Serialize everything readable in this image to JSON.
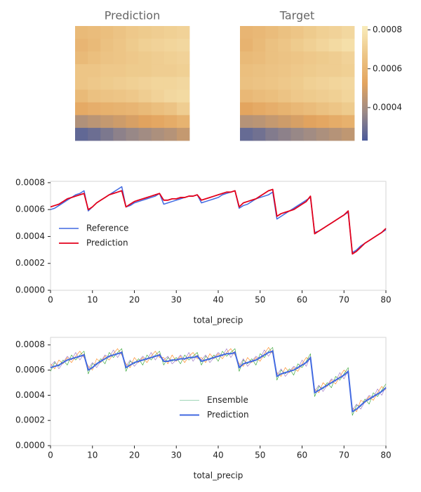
{
  "chart_data": [
    {
      "type": "heatmap",
      "title": "Prediction",
      "clim": [
        0.00023,
        0.00082
      ],
      "colormap": [
        "#4b5b9b",
        "#9c8a86",
        "#e3a45e",
        "#edc687",
        "#f9ecbb"
      ],
      "values": [
        [
          0.00062,
          0.00063,
          0.00064,
          0.00066,
          0.00068,
          0.00069,
          0.0007,
          0.00071,
          0.00072
        ],
        [
          0.0006,
          0.00062,
          0.00065,
          0.00067,
          0.00069,
          0.00071,
          0.00072,
          0.00073,
          0.00074
        ],
        [
          0.00062,
          0.00064,
          0.00066,
          0.00067,
          0.00068,
          0.00069,
          0.0007,
          0.00071,
          0.00072
        ],
        [
          0.00067,
          0.00067,
          0.00068,
          0.00068,
          0.00069,
          0.00069,
          0.0007,
          0.0007,
          0.00071
        ],
        [
          0.00067,
          0.00068,
          0.00069,
          0.0007,
          0.00071,
          0.00072,
          0.00073,
          0.00073,
          0.00074
        ],
        [
          0.00062,
          0.00065,
          0.00066,
          0.00067,
          0.00068,
          0.0007,
          0.00072,
          0.00074,
          0.00075
        ],
        [
          0.00055,
          0.00057,
          0.00058,
          0.00059,
          0.0006,
          0.00062,
          0.00064,
          0.00066,
          0.0007
        ],
        [
          0.00042,
          0.00044,
          0.00046,
          0.00048,
          0.0005,
          0.00052,
          0.00054,
          0.00056,
          0.00059
        ],
        [
          0.00027,
          0.00029,
          0.00032,
          0.00035,
          0.00037,
          0.00039,
          0.00041,
          0.00043,
          0.00046
        ]
      ]
    },
    {
      "type": "heatmap",
      "title": "Target",
      "clim": [
        0.00023,
        0.00082
      ],
      "colormap": [
        "#4b5b9b",
        "#9c8a86",
        "#e3a45e",
        "#edc687",
        "#f9ecbb"
      ],
      "colorbar_ticks": [
        0.0004,
        0.0006,
        0.0008
      ],
      "values": [
        [
          0.0006,
          0.00061,
          0.00063,
          0.00065,
          0.00067,
          0.00069,
          0.00071,
          0.00072,
          0.00074
        ],
        [
          0.00059,
          0.00062,
          0.00065,
          0.00067,
          0.00069,
          0.00071,
          0.00073,
          0.00075,
          0.00077
        ],
        [
          0.00062,
          0.00063,
          0.00065,
          0.00066,
          0.00067,
          0.00068,
          0.00069,
          0.0007,
          0.00072
        ],
        [
          0.00064,
          0.00065,
          0.00066,
          0.00067,
          0.00068,
          0.00069,
          0.0007,
          0.0007,
          0.00071
        ],
        [
          0.00065,
          0.00066,
          0.00067,
          0.00068,
          0.00069,
          0.00071,
          0.00072,
          0.00073,
          0.00074
        ],
        [
          0.00061,
          0.00063,
          0.00064,
          0.00066,
          0.00068,
          0.00069,
          0.0007,
          0.00071,
          0.00073
        ],
        [
          0.00053,
          0.00055,
          0.00057,
          0.00059,
          0.00061,
          0.00063,
          0.00065,
          0.00067,
          0.00069
        ],
        [
          0.00043,
          0.00044,
          0.00046,
          0.00048,
          0.0005,
          0.00052,
          0.00054,
          0.00056,
          0.00058
        ],
        [
          0.00028,
          0.0003,
          0.00033,
          0.00035,
          0.00037,
          0.00039,
          0.00041,
          0.00043,
          0.00045
        ]
      ]
    },
    {
      "type": "line",
      "x_label": "total_precip",
      "legend": "center left",
      "xlim": [
        0,
        80
      ],
      "xticks": [
        0,
        10,
        20,
        30,
        40,
        50,
        60,
        70,
        80
      ],
      "ylim": [
        0,
        0.00081
      ],
      "yticks": [
        {
          "value": 0,
          "label": "0.0000"
        },
        0.0002,
        0.0004,
        0.0006,
        0.0008
      ],
      "x": [
        0,
        1,
        2,
        3,
        4,
        5,
        6,
        7,
        8,
        9,
        10,
        11,
        12,
        13,
        14,
        15,
        16,
        17,
        18,
        19,
        20,
        21,
        22,
        23,
        24,
        25,
        26,
        27,
        28,
        29,
        30,
        31,
        32,
        33,
        34,
        35,
        36,
        37,
        38,
        39,
        40,
        41,
        42,
        43,
        44,
        45,
        46,
        47,
        48,
        49,
        50,
        51,
        52,
        53,
        54,
        55,
        56,
        57,
        58,
        59,
        60,
        61,
        62,
        63,
        64,
        65,
        66,
        67,
        68,
        69,
        70,
        71,
        72,
        73,
        74,
        75,
        76,
        77,
        78,
        79,
        80
      ],
      "series": [
        {
          "name": "Reference",
          "color": "#4169e1",
          "width": 1.5,
          "values": [
            0.0006,
            0.00061,
            0.00063,
            0.00065,
            0.00067,
            0.00069,
            0.00071,
            0.00072,
            0.00074,
            0.00059,
            0.00062,
            0.00065,
            0.00067,
            0.00069,
            0.00071,
            0.00073,
            0.00075,
            0.00077,
            0.00062,
            0.00063,
            0.00065,
            0.00066,
            0.00067,
            0.00068,
            0.00069,
            0.0007,
            0.00072,
            0.00064,
            0.00065,
            0.00066,
            0.00067,
            0.00068,
            0.00069,
            0.0007,
            0.0007,
            0.00071,
            0.00065,
            0.00066,
            0.00067,
            0.00068,
            0.00069,
            0.00071,
            0.00072,
            0.00073,
            0.00074,
            0.00061,
            0.00063,
            0.00064,
            0.00066,
            0.00068,
            0.00069,
            0.0007,
            0.00071,
            0.00073,
            0.00053,
            0.00055,
            0.00057,
            0.00059,
            0.00061,
            0.00063,
            0.00065,
            0.00067,
            0.00069,
            0.00043,
            0.00044,
            0.00046,
            0.00048,
            0.0005,
            0.00052,
            0.00054,
            0.00056,
            0.00058,
            0.00028,
            0.0003,
            0.00033,
            0.00035,
            0.00037,
            0.00039,
            0.00041,
            0.00043,
            0.00045
          ]
        },
        {
          "name": "Prediction",
          "color": "#e3001b",
          "width": 1.8,
          "values": [
            0.00062,
            0.00063,
            0.00064,
            0.00066,
            0.00068,
            0.00069,
            0.0007,
            0.00071,
            0.00072,
            0.0006,
            0.00062,
            0.00065,
            0.00067,
            0.00069,
            0.00071,
            0.00072,
            0.00073,
            0.00074,
            0.00062,
            0.00064,
            0.00066,
            0.00067,
            0.00068,
            0.00069,
            0.0007,
            0.00071,
            0.00072,
            0.00067,
            0.00067,
            0.00068,
            0.00068,
            0.00069,
            0.00069,
            0.0007,
            0.0007,
            0.00071,
            0.00067,
            0.00068,
            0.00069,
            0.0007,
            0.00071,
            0.00072,
            0.00073,
            0.00073,
            0.00074,
            0.00062,
            0.00065,
            0.00066,
            0.00067,
            0.00068,
            0.0007,
            0.00072,
            0.00074,
            0.00075,
            0.00055,
            0.00057,
            0.00058,
            0.00059,
            0.0006,
            0.00062,
            0.00064,
            0.00066,
            0.0007,
            0.00042,
            0.00044,
            0.00046,
            0.00048,
            0.0005,
            0.00052,
            0.00054,
            0.00056,
            0.00059,
            0.00027,
            0.00029,
            0.00032,
            0.00035,
            0.00037,
            0.00039,
            0.00041,
            0.00043,
            0.00046
          ]
        }
      ]
    },
    {
      "type": "line",
      "x_label": "total_precip",
      "legend": "center",
      "xlim": [
        0,
        80
      ],
      "xticks": [
        0,
        10,
        20,
        30,
        40,
        50,
        60,
        70,
        80
      ],
      "ylim": [
        0,
        0.00086
      ],
      "yticks": [
        {
          "value": 0,
          "label": "0.0000"
        },
        0.0002,
        0.0004,
        0.0006,
        0.0008
      ],
      "x": [
        0,
        1,
        2,
        3,
        4,
        5,
        6,
        7,
        8,
        9,
        10,
        11,
        12,
        13,
        14,
        15,
        16,
        17,
        18,
        19,
        20,
        21,
        22,
        23,
        24,
        25,
        26,
        27,
        28,
        29,
        30,
        31,
        32,
        33,
        34,
        35,
        36,
        37,
        38,
        39,
        40,
        41,
        42,
        43,
        44,
        45,
        46,
        47,
        48,
        49,
        50,
        51,
        52,
        53,
        54,
        55,
        56,
        57,
        58,
        59,
        60,
        61,
        62,
        63,
        64,
        65,
        66,
        67,
        68,
        69,
        70,
        71,
        72,
        73,
        74,
        75,
        76,
        77,
        78,
        79,
        80
      ],
      "series": [
        {
          "name": "Ensemble",
          "color": "#7fc9a0",
          "width": 0.6,
          "members": [
            {
              "color": "#ff7f0e",
              "values": [
                0.00065,
                0.00061,
                0.00068,
                0.00065,
                0.0007,
                0.00066,
                0.00071,
                0.00075,
                0.0007,
                0.00063,
                0.0006,
                0.00069,
                0.00066,
                0.00071,
                0.00068,
                0.00073,
                0.00077,
                0.00072,
                0.00065,
                0.00062,
                0.0007,
                0.00066,
                0.0007,
                0.00066,
                0.00071,
                0.00075,
                0.0007,
                0.0007,
                0.00065,
                0.00072,
                0.00067,
                0.00071,
                0.00066,
                0.00071,
                0.00074,
                0.00069,
                0.0007,
                0.00066,
                0.00073,
                0.00069,
                0.00073,
                0.00069,
                0.00074,
                0.00077,
                0.00072,
                0.00065,
                0.00063,
                0.0007,
                0.00066,
                0.0007,
                0.00067,
                0.00073,
                0.00078,
                0.00073,
                0.00058,
                0.00055,
                0.00062,
                0.00058,
                0.00062,
                0.00059,
                0.00065,
                0.0007,
                0.00068,
                0.00045,
                0.00042,
                0.0005,
                0.00047,
                0.00052,
                0.00049,
                0.00055,
                0.0006,
                0.00057,
                0.0003,
                0.00027,
                0.00036,
                0.00034,
                0.00039,
                0.00036,
                0.00042,
                0.00047,
                0.00044
              ]
            },
            {
              "color": "#2ca02c",
              "values": [
                0.00059,
                0.00066,
                0.00063,
                0.00068,
                0.00064,
                0.00072,
                0.00068,
                0.00072,
                0.00075,
                0.00057,
                0.00065,
                0.00064,
                0.00069,
                0.00065,
                0.00074,
                0.0007,
                0.00074,
                0.00077,
                0.00059,
                0.00067,
                0.00065,
                0.00069,
                0.00064,
                0.00072,
                0.00068,
                0.00072,
                0.00075,
                0.00064,
                0.0007,
                0.00067,
                0.0007,
                0.00065,
                0.00072,
                0.00068,
                0.00071,
                0.00074,
                0.00064,
                0.00071,
                0.00068,
                0.00072,
                0.00067,
                0.00075,
                0.00071,
                0.00074,
                0.00077,
                0.00059,
                0.00068,
                0.00065,
                0.00069,
                0.00064,
                0.00073,
                0.0007,
                0.00075,
                0.00078,
                0.00052,
                0.0006,
                0.00057,
                0.00061,
                0.00056,
                0.00065,
                0.00062,
                0.00067,
                0.00073,
                0.00039,
                0.00047,
                0.00045,
                0.0005,
                0.00046,
                0.00055,
                0.00052,
                0.00057,
                0.00062,
                0.00024,
                0.00032,
                0.00031,
                0.00037,
                0.00033,
                0.00042,
                0.00039,
                0.00044,
                0.00049
              ]
            },
            {
              "color": "#9467bd",
              "values": [
                0.00063,
                0.00067,
                0.00061,
                0.00066,
                0.00071,
                0.00068,
                0.00074,
                0.00068,
                0.00073,
                0.00061,
                0.00066,
                0.00062,
                0.00067,
                0.00072,
                0.0007,
                0.00076,
                0.0007,
                0.00075,
                0.00063,
                0.00068,
                0.00063,
                0.00067,
                0.00071,
                0.00068,
                0.00074,
                0.00068,
                0.00073,
                0.00068,
                0.00071,
                0.00065,
                0.00068,
                0.00072,
                0.00068,
                0.00074,
                0.00067,
                0.00072,
                0.00068,
                0.00072,
                0.00066,
                0.0007,
                0.00074,
                0.00071,
                0.00077,
                0.0007,
                0.00075,
                0.00063,
                0.00069,
                0.00063,
                0.00067,
                0.00071,
                0.00069,
                0.00076,
                0.00071,
                0.00076,
                0.00056,
                0.00061,
                0.00055,
                0.00059,
                0.00063,
                0.00061,
                0.00068,
                0.00063,
                0.00071,
                0.00043,
                0.00048,
                0.00043,
                0.00048,
                0.00053,
                0.00051,
                0.00058,
                0.00053,
                0.0006,
                0.00028,
                0.00033,
                0.00029,
                0.00035,
                0.0004,
                0.00038,
                0.00045,
                0.0004,
                0.00047
              ]
            }
          ]
        },
        {
          "name": "Prediction",
          "color": "#4169e1",
          "width": 2,
          "values": [
            0.00062,
            0.00063,
            0.00064,
            0.00066,
            0.00068,
            0.00069,
            0.0007,
            0.00071,
            0.00072,
            0.0006,
            0.00062,
            0.00065,
            0.00067,
            0.00069,
            0.00071,
            0.00072,
            0.00073,
            0.00074,
            0.00062,
            0.00064,
            0.00066,
            0.00067,
            0.00068,
            0.00069,
            0.0007,
            0.00071,
            0.00072,
            0.00067,
            0.00067,
            0.00068,
            0.00068,
            0.00069,
            0.00069,
            0.0007,
            0.0007,
            0.00071,
            0.00067,
            0.00068,
            0.00069,
            0.0007,
            0.00071,
            0.00072,
            0.00073,
            0.00073,
            0.00074,
            0.00062,
            0.00065,
            0.00066,
            0.00067,
            0.00068,
            0.0007,
            0.00072,
            0.00074,
            0.00075,
            0.00055,
            0.00057,
            0.00058,
            0.00059,
            0.0006,
            0.00062,
            0.00064,
            0.00066,
            0.0007,
            0.00042,
            0.00044,
            0.00046,
            0.00048,
            0.0005,
            0.00052,
            0.00054,
            0.00056,
            0.00059,
            0.00027,
            0.00029,
            0.00032,
            0.00035,
            0.00037,
            0.00039,
            0.00041,
            0.00043,
            0.00046
          ]
        }
      ]
    }
  ]
}
